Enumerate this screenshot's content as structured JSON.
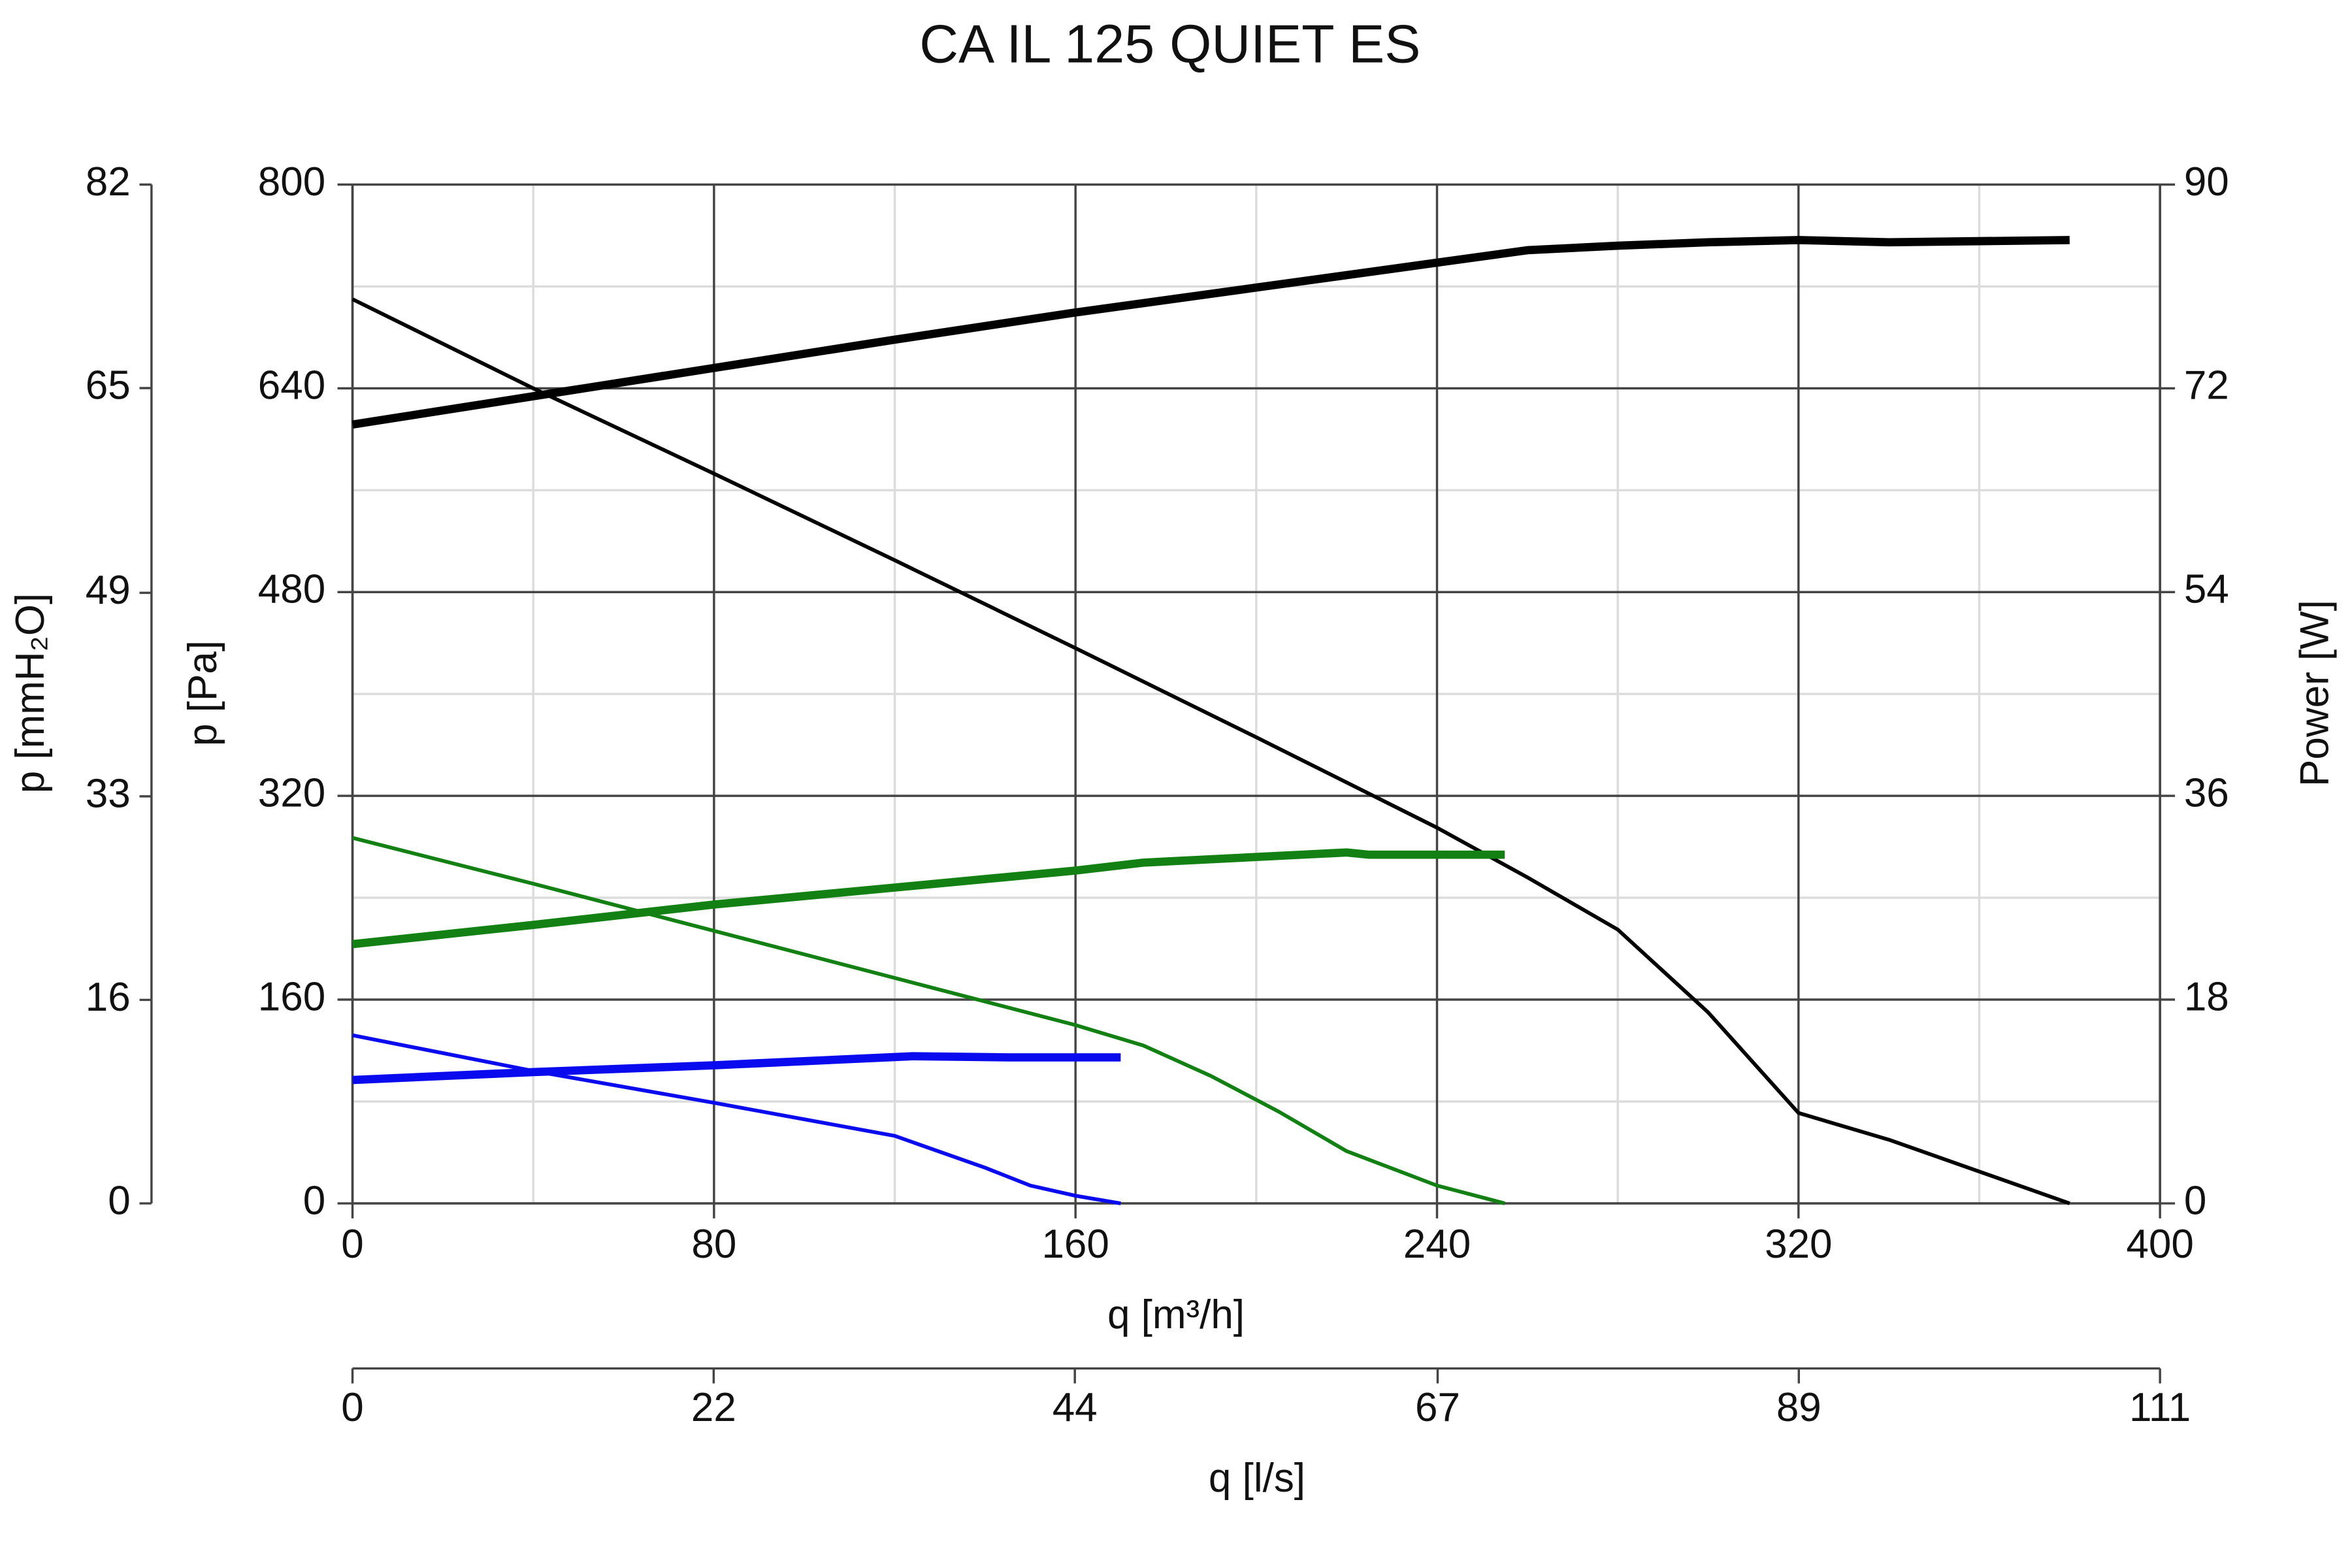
{
  "chart_data": {
    "type": "line",
    "title": "CA IL 125 QUIET ES",
    "xlabel": "q [m³/h]",
    "ylabel": "p [Pa]",
    "y2label": "Power [W]",
    "ymm_label": "p [mmH₂O]",
    "x2label": "q [l/s]",
    "xlim": [
      0,
      400
    ],
    "xticks": [
      0,
      80,
      160,
      240,
      320,
      400
    ],
    "xminorticks": [
      40,
      120,
      200,
      280,
      360
    ],
    "ylim": [
      0,
      800
    ],
    "yticks": [
      0,
      160,
      320,
      480,
      640,
      800
    ],
    "yminorticks": [
      80,
      240,
      400,
      560,
      720
    ],
    "y2lim": [
      0,
      90
    ],
    "y2ticks": [
      0,
      18,
      36,
      54,
      72,
      90
    ],
    "ymmlim": [
      0,
      81.6
    ],
    "ymmticks": [
      0,
      {
        "value": 16.3,
        "label": "16"
      },
      {
        "value": 32.6,
        "label": "33"
      },
      {
        "value": 48.9,
        "label": "49"
      },
      {
        "value": 65.3,
        "label": "65"
      },
      {
        "value": 81.6,
        "label": "82"
      }
    ],
    "x2lim": [
      0,
      111.1
    ],
    "x2ticks": [
      0,
      {
        "value": 22.2,
        "label": "22"
      },
      {
        "value": 44.4,
        "label": "44"
      },
      {
        "value": 66.7,
        "label": "67"
      },
      {
        "value": 88.9,
        "label": "89"
      },
      {
        "value": 111.1,
        "label": "111"
      }
    ],
    "grid": true,
    "series": [
      {
        "color": "#000000",
        "line_width": 2.5,
        "axis": "y",
        "x": [
          0,
          40,
          80,
          120,
          160,
          200,
          240,
          260,
          280,
          300,
          320,
          340,
          380
        ],
        "values": [
          710,
          640,
          573,
          505,
          436,
          366,
          295,
          256,
          215,
          150,
          71,
          50,
          0
        ]
      },
      {
        "color": "#000000",
        "line_width": 5.5,
        "axis": "y2",
        "x": [
          0,
          40,
          80,
          120,
          160,
          200,
          240,
          260,
          280,
          300,
          320,
          340,
          360,
          380
        ],
        "values": [
          68.8,
          71.3,
          73.8,
          76.3,
          78.7,
          80.9,
          83.1,
          84.2,
          84.6,
          84.9,
          85.1,
          84.9,
          85.0,
          85.1
        ]
      },
      {
        "color": "#138013",
        "line_width": 2.5,
        "axis": "y",
        "x": [
          0,
          40,
          80,
          120,
          160,
          175,
          190,
          205,
          220,
          240,
          255
        ],
        "values": [
          287,
          251,
          214,
          177,
          140,
          124,
          100,
          72,
          41,
          14,
          0
        ]
      },
      {
        "color": "#138013",
        "line_width": 5.5,
        "axis": "y2",
        "x": [
          0,
          40,
          80,
          120,
          160,
          175,
          200,
          220,
          225,
          255
        ],
        "values": [
          22.9,
          24.6,
          26.4,
          27.9,
          29.4,
          30.1,
          30.6,
          31.0,
          30.8,
          30.8
        ]
      },
      {
        "color": "#0a0aee",
        "line_width": 2.5,
        "axis": "y",
        "x": [
          0,
          40,
          80,
          120,
          140,
          150,
          160,
          170
        ],
        "values": [
          132,
          104,
          79,
          53,
          28,
          14,
          6,
          0
        ]
      },
      {
        "color": "#0a0aee",
        "line_width": 5.5,
        "axis": "y2",
        "x": [
          0,
          40,
          80,
          124,
          145,
          170
        ],
        "values": [
          10.9,
          11.6,
          12.2,
          13.0,
          12.9,
          12.9
        ]
      }
    ]
  }
}
